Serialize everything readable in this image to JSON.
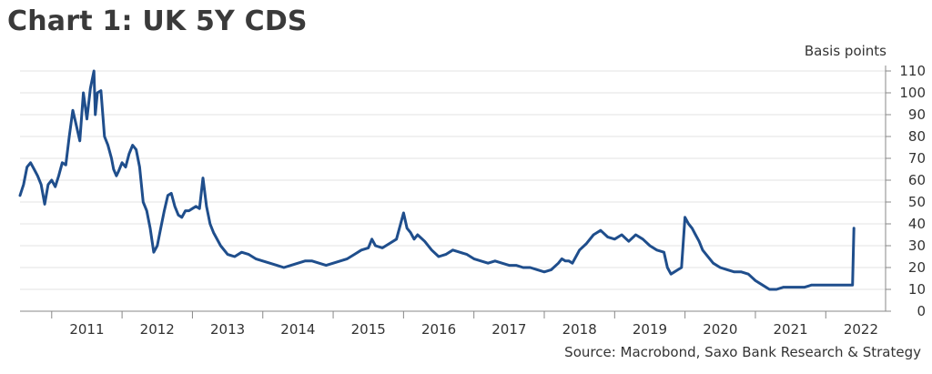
{
  "title": "Chart 1: UK 5Y CDS",
  "source": "Source: Macrobond, Saxo Bank Research & Strategy",
  "chart_data": {
    "type": "line",
    "title": "Chart 1: UK 5Y CDS",
    "ylabel": "Basis points",
    "xlabel": "",
    "ylim": [
      0,
      110
    ],
    "xlim": [
      2010.55,
      2022.85
    ],
    "y_ticks": [
      0,
      10,
      20,
      30,
      40,
      50,
      60,
      70,
      80,
      90,
      100,
      110
    ],
    "x_tick_labels": [
      "2011",
      "2012",
      "2013",
      "2014",
      "2015",
      "2016",
      "2017",
      "2018",
      "2019",
      "2020",
      "2021",
      "2022"
    ],
    "grid": "horizontal",
    "line_color": "#1f4e8c",
    "series": [
      {
        "x": [
          2010.55,
          2010.6,
          2010.65,
          2010.7,
          2010.75,
          2010.8,
          2010.85,
          2010.9,
          2010.95,
          2011.0,
          2011.05,
          2011.1,
          2011.15,
          2011.2,
          2011.25,
          2011.3,
          2011.35,
          2011.4,
          2011.45,
          2011.5,
          2011.55,
          2011.6,
          2011.62,
          2011.65,
          2011.7,
          2011.75,
          2011.8,
          2011.85,
          2011.88,
          2011.92,
          2011.95,
          2012.0,
          2012.05,
          2012.1,
          2012.15,
          2012.2,
          2012.25,
          2012.3,
          2012.35,
          2012.4,
          2012.45,
          2012.5,
          2012.55,
          2012.6,
          2012.65,
          2012.7,
          2012.75,
          2012.8,
          2012.85,
          2012.9,
          2012.95,
          2013.0,
          2013.05,
          2013.1,
          2013.15,
          2013.2,
          2013.25,
          2013.3,
          2013.4,
          2013.5,
          2013.6,
          2013.7,
          2013.8,
          2013.9,
          2014.0,
          2014.1,
          2014.2,
          2014.3,
          2014.4,
          2014.5,
          2014.6,
          2014.7,
          2014.8,
          2014.9,
          2015.0,
          2015.1,
          2015.2,
          2015.3,
          2015.4,
          2015.5,
          2015.55,
          2015.6,
          2015.7,
          2015.8,
          2015.9,
          2016.0,
          2016.05,
          2016.1,
          2016.15,
          2016.2,
          2016.3,
          2016.4,
          2016.5,
          2016.6,
          2016.7,
          2016.8,
          2016.9,
          2017.0,
          2017.1,
          2017.2,
          2017.3,
          2017.4,
          2017.5,
          2017.6,
          2017.7,
          2017.8,
          2017.9,
          2018.0,
          2018.1,
          2018.2,
          2018.25,
          2018.3,
          2018.35,
          2018.4,
          2018.5,
          2018.6,
          2018.7,
          2018.8,
          2018.9,
          2019.0,
          2019.1,
          2019.2,
          2019.3,
          2019.4,
          2019.5,
          2019.6,
          2019.7,
          2019.75,
          2019.8,
          2019.85,
          2019.9,
          2019.95,
          2020.0,
          2020.05,
          2020.1,
          2020.15,
          2020.2,
          2020.25,
          2020.3,
          2020.4,
          2020.5,
          2020.6,
          2020.7,
          2020.8,
          2020.9,
          2021.0,
          2021.1,
          2021.2,
          2021.3,
          2021.4,
          2021.5,
          2021.6,
          2021.7,
          2021.8,
          2021.9,
          2022.0,
          2022.1,
          2022.2,
          2022.3,
          2022.35,
          2022.38,
          2022.4
        ],
        "y": [
          53,
          58,
          66,
          68,
          65,
          62,
          58,
          49,
          58,
          60,
          57,
          62,
          68,
          67,
          80,
          92,
          85,
          78,
          100,
          88,
          102,
          110,
          90,
          100,
          101,
          80,
          76,
          70,
          65,
          62,
          64,
          68,
          66,
          72,
          76,
          74,
          66,
          50,
          46,
          38,
          27,
          30,
          38,
          46,
          53,
          54,
          48,
          44,
          43,
          46,
          46,
          47,
          48,
          47,
          61,
          48,
          40,
          36,
          30,
          26,
          25,
          27,
          26,
          24,
          23,
          22,
          21,
          20,
          21,
          22,
          23,
          23,
          22,
          21,
          22,
          23,
          24,
          26,
          28,
          29,
          33,
          30,
          29,
          31,
          33,
          45,
          38,
          36,
          33,
          35,
          32,
          28,
          25,
          26,
          28,
          27,
          26,
          24,
          23,
          22,
          23,
          22,
          21,
          21,
          20,
          20,
          19,
          18,
          19,
          22,
          24,
          23,
          23,
          22,
          28,
          31,
          35,
          37,
          34,
          33,
          35,
          32,
          35,
          33,
          30,
          28,
          27,
          20,
          17,
          18,
          19,
          20,
          43,
          40,
          38,
          35,
          32,
          28,
          26,
          22,
          20,
          19,
          18,
          18,
          17,
          14,
          12,
          10,
          10,
          11,
          11,
          11,
          11,
          12,
          12,
          12,
          12,
          12,
          12,
          12,
          12,
          38
        ]
      }
    ]
  }
}
